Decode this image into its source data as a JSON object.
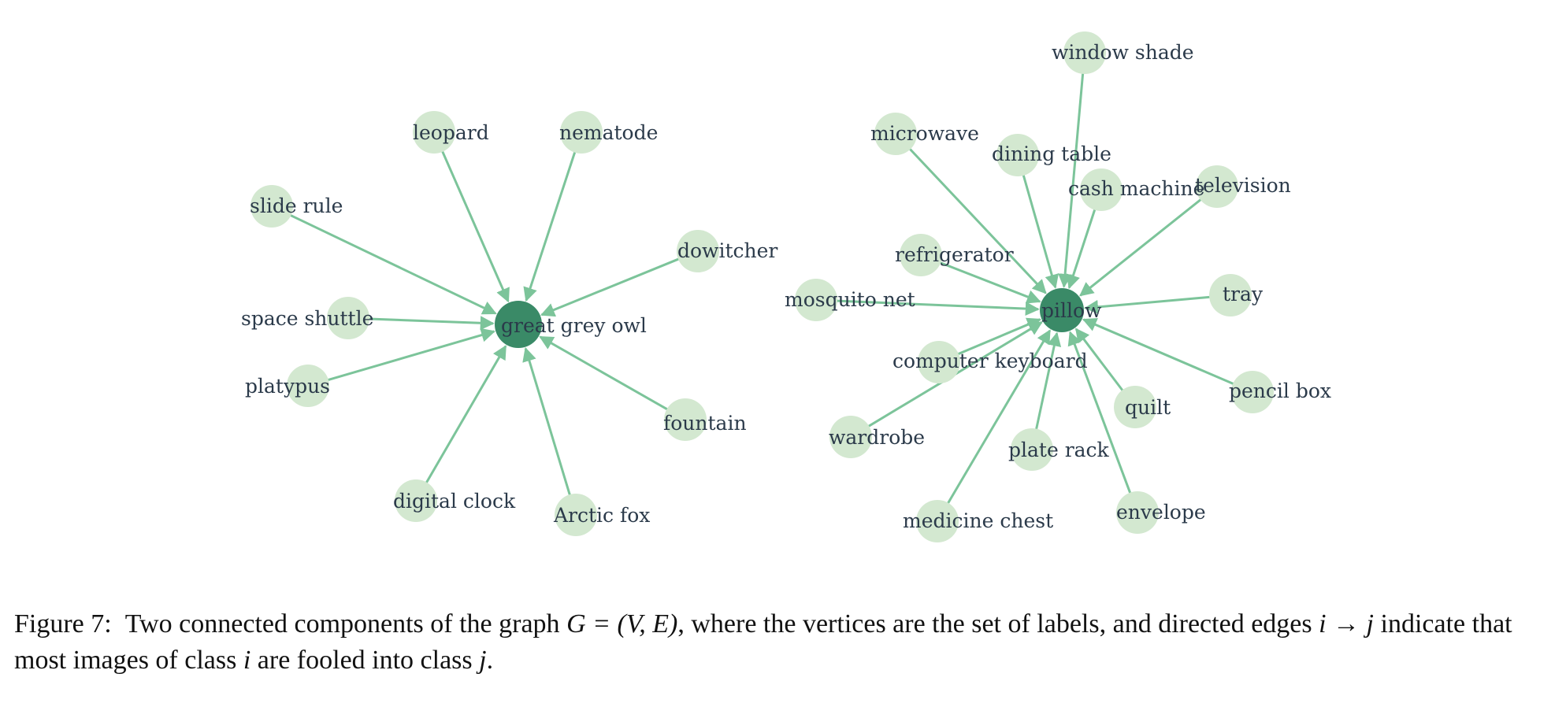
{
  "diagram": {
    "components": [
      {
        "hub": "great grey owl",
        "sources": [
          "leopard",
          "nematode",
          "slide rule",
          "dowitcher",
          "space shuttle",
          "platypus",
          "fountain",
          "digital clock",
          "Arctic fox"
        ]
      },
      {
        "hub": "pillow",
        "sources": [
          "window shade",
          "microwave",
          "dining table",
          "cash machine",
          "television",
          "refrigerator",
          "mosquito net",
          "tray",
          "computer keyboard",
          "pencil box",
          "quilt",
          "wardrobe",
          "plate rack",
          "envelope",
          "medicine chest"
        ]
      }
    ],
    "colors": {
      "hub_node": "#3a8a67",
      "leaf_node": "#d3e8d0",
      "edge": "#7cc49a",
      "label": "#2b3a4a"
    }
  },
  "caption": {
    "figure_label": "Figure 7:",
    "text_1": "Two connected components of the graph ",
    "math_1": "G = (V, E)",
    "text_2": ", where the vertices are the set of labels, and directed edges ",
    "math_2": "i → j",
    "text_3": " indicate that most images of class ",
    "math_3": "i",
    "text_4": " are fooled into class ",
    "math_4": "j",
    "text_5": "."
  }
}
